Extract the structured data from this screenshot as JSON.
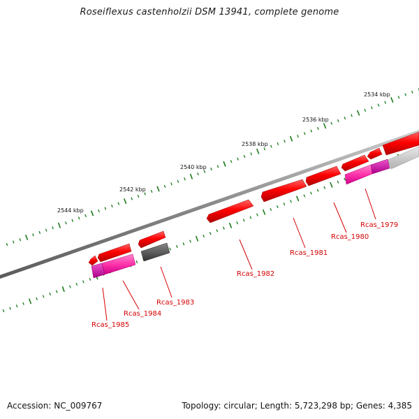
{
  "title": "Roseiflexus castenholzii DSM 13941, complete genome",
  "footer": {
    "accession": "Accession: NC_009767",
    "summary": "Topology: circular; Length: 5,723,298 bp; Genes: 4,385"
  },
  "scale_labels": [
    "2534 kbp",
    "2536 kbp",
    "2538 kbp",
    "2540 kbp",
    "2542 kbp",
    "2544 kbp"
  ],
  "gene_labels": [
    "Rcas_1979",
    "Rcas_1980",
    "Rcas_1981",
    "Rcas_1982",
    "Rcas_1983",
    "Rcas_1984",
    "Rcas_1985"
  ],
  "colors": {
    "backbone": "#8a8a8a",
    "cds_forward": "#ff0000",
    "cds_pink": "#ff33aa",
    "cds_gray": "#555555",
    "tick": "#1a7a1a",
    "label": "#d40000"
  }
}
